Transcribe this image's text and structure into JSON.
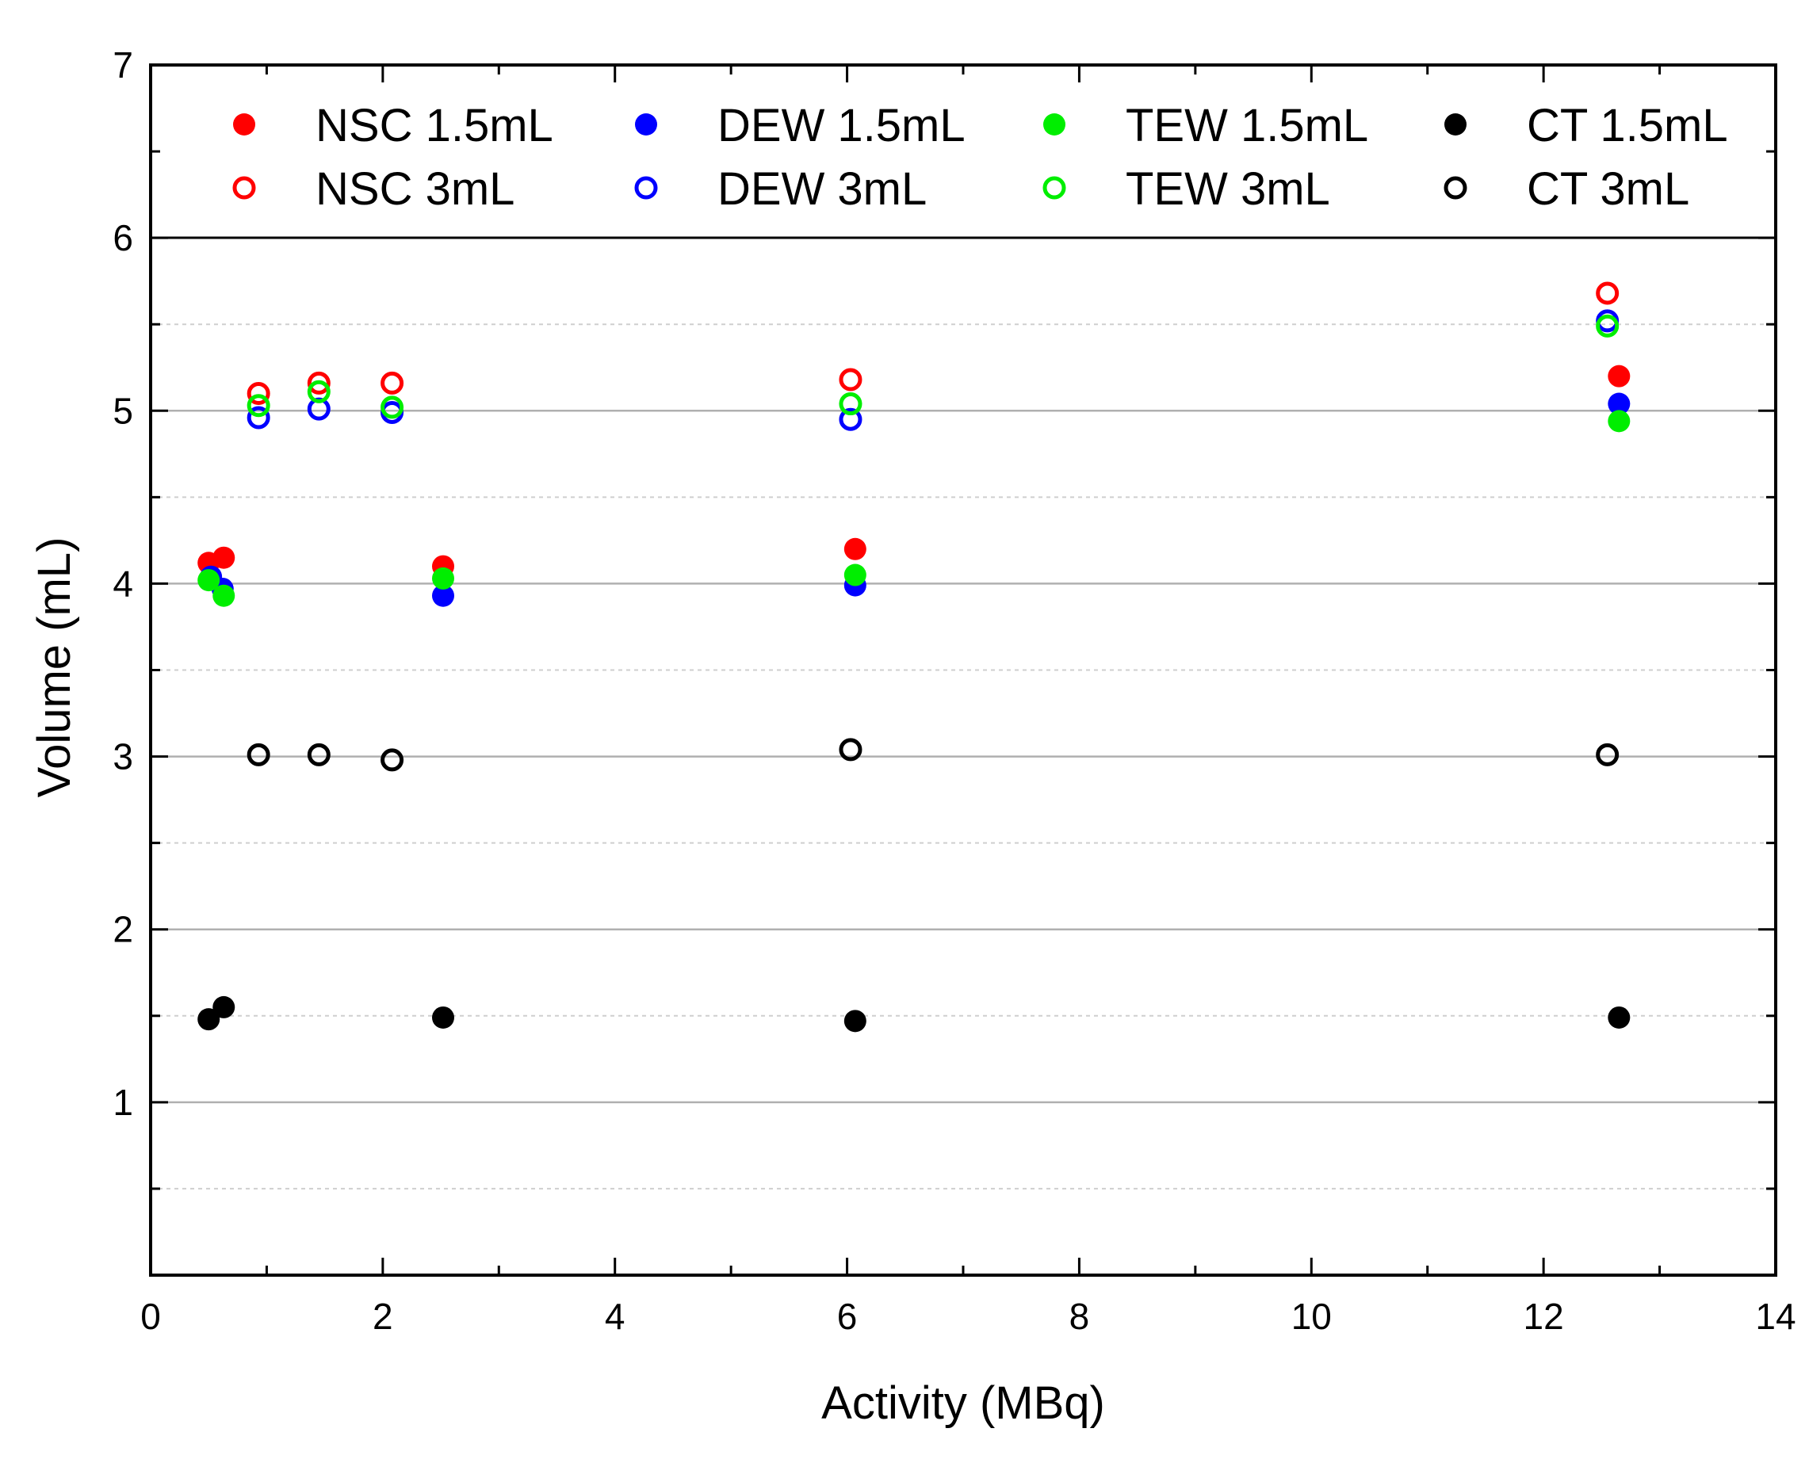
{
  "chart_data": {
    "type": "scatter",
    "title": "",
    "xlabel": "Activity (MBq)",
    "ylabel": "Volume (mL)",
    "xlim": [
      0,
      14
    ],
    "ylim": [
      0,
      7
    ],
    "x_ticks": [
      "0",
      "2",
      "4",
      "6",
      "8",
      "10",
      "12",
      "14"
    ],
    "y_ticks": [
      "1",
      "2",
      "3",
      "4",
      "5",
      "6",
      "7"
    ],
    "grid": "horizontal",
    "legend_position": "top, inside plot area",
    "series": [
      {
        "name": "NSC 1.5mL",
        "color": "#ff0000",
        "filled": true,
        "points": [
          [
            0.5,
            4.12
          ],
          [
            0.63,
            4.15
          ],
          [
            2.52,
            4.1
          ],
          [
            6.07,
            4.2
          ],
          [
            12.65,
            5.2
          ]
        ]
      },
      {
        "name": "DEW 1.5mL",
        "color": "#0000ff",
        "filled": true,
        "points": [
          [
            0.52,
            4.04
          ],
          [
            0.62,
            3.97
          ],
          [
            2.52,
            3.93
          ],
          [
            6.07,
            3.99
          ],
          [
            12.65,
            5.04
          ]
        ]
      },
      {
        "name": "TEW 1.5mL",
        "color": "#00ee00",
        "filled": true,
        "points": [
          [
            0.5,
            4.02
          ],
          [
            0.63,
            3.93
          ],
          [
            2.52,
            4.03
          ],
          [
            6.07,
            4.05
          ],
          [
            12.65,
            4.94
          ]
        ]
      },
      {
        "name": "CT 1.5mL",
        "color": "#000000",
        "filled": true,
        "points": [
          [
            0.5,
            1.48
          ],
          [
            0.63,
            1.55
          ],
          [
            2.52,
            1.49
          ],
          [
            6.07,
            1.47
          ],
          [
            12.65,
            1.49
          ]
        ]
      },
      {
        "name": "NSC 3mL",
        "color": "#ff0000",
        "filled": false,
        "points": [
          [
            0.93,
            5.1
          ],
          [
            1.45,
            5.16
          ],
          [
            2.08,
            5.16
          ],
          [
            6.03,
            5.18
          ],
          [
            12.55,
            5.68
          ]
        ]
      },
      {
        "name": "DEW 3mL",
        "color": "#0000ff",
        "filled": false,
        "points": [
          [
            0.93,
            4.96
          ],
          [
            1.45,
            5.01
          ],
          [
            2.08,
            4.99
          ],
          [
            6.03,
            4.95
          ],
          [
            12.55,
            5.52
          ]
        ]
      },
      {
        "name": "TEW 3mL",
        "color": "#00ee00",
        "filled": false,
        "points": [
          [
            0.93,
            5.03
          ],
          [
            1.45,
            5.11
          ],
          [
            2.08,
            5.02
          ],
          [
            6.03,
            5.04
          ],
          [
            12.55,
            5.49
          ]
        ]
      },
      {
        "name": "CT 3mL",
        "color": "#000000",
        "filled": false,
        "points": [
          [
            0.93,
            3.01
          ],
          [
            1.45,
            3.01
          ],
          [
            2.08,
            2.98
          ],
          [
            6.03,
            3.04
          ],
          [
            12.55,
            3.01
          ]
        ]
      }
    ]
  }
}
